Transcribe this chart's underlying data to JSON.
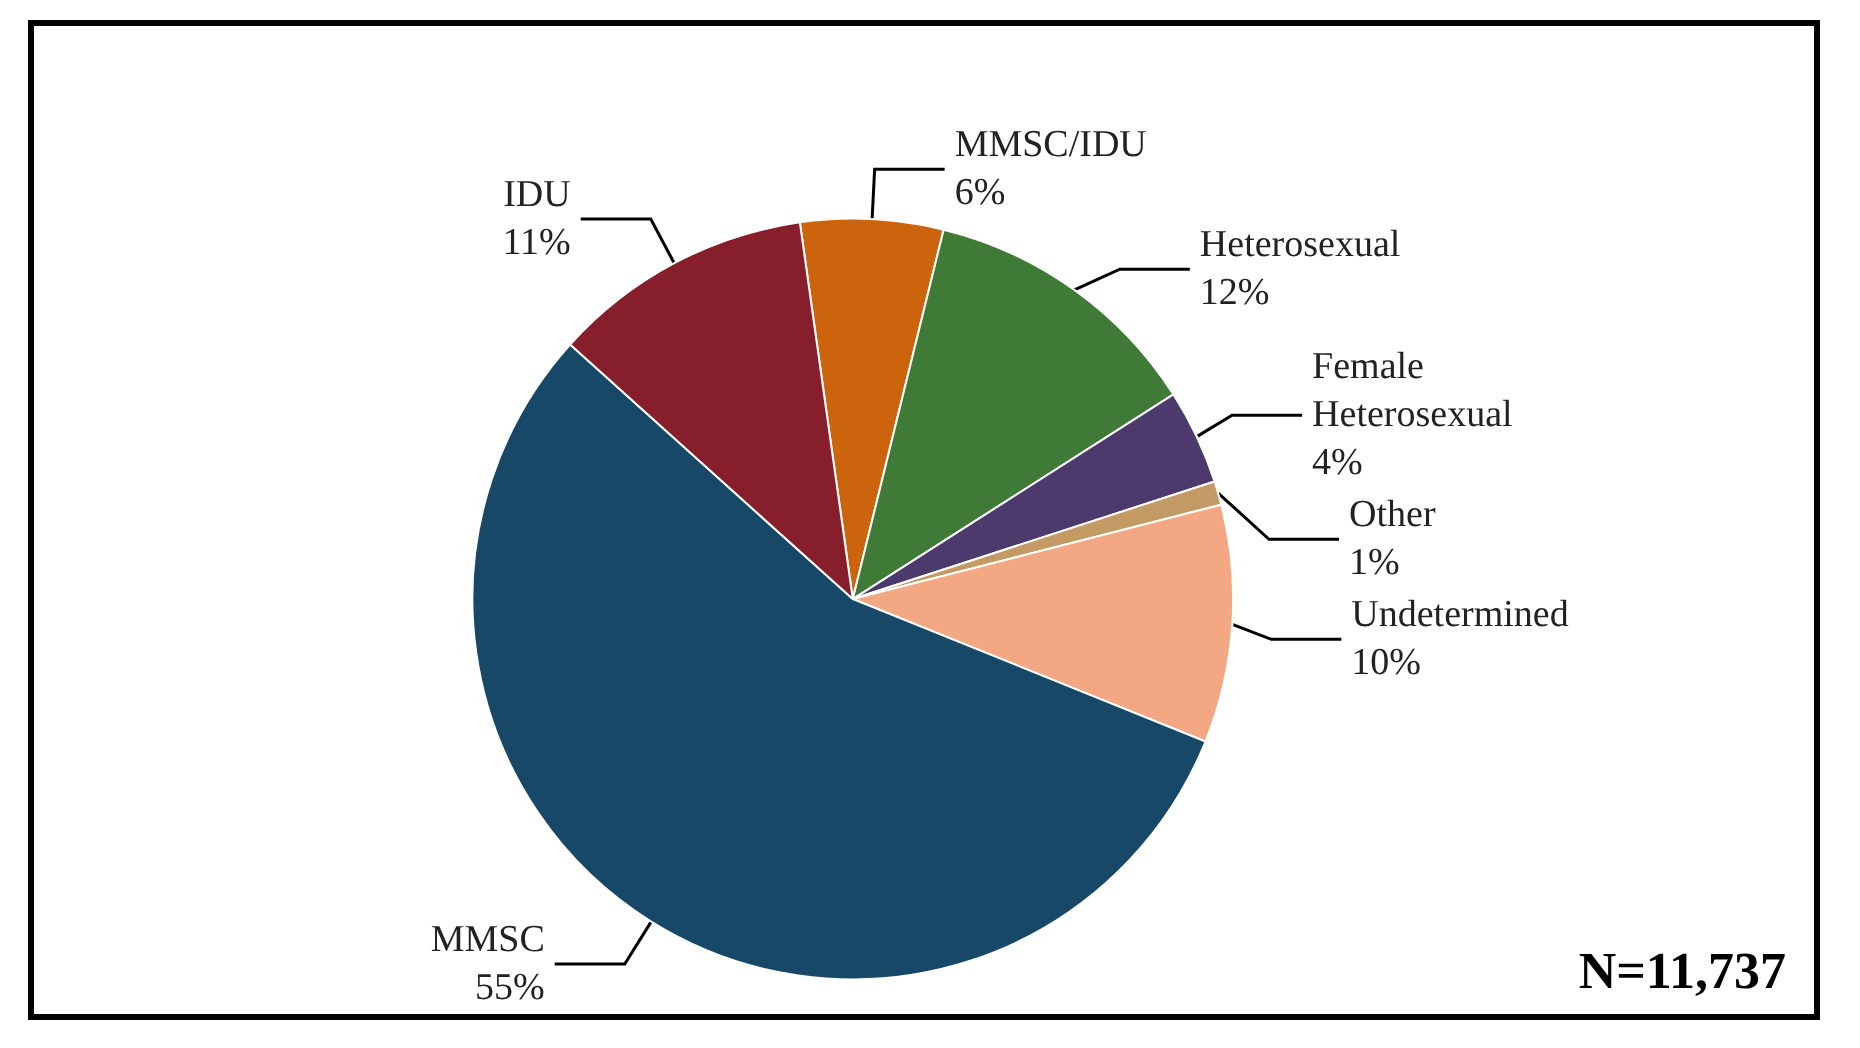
{
  "chart_data": {
    "type": "pie",
    "categories": [
      "MMSC/IDU",
      "Heterosexual",
      "Female Heterosexual",
      "Other",
      "Undetermined",
      "MMSC",
      "IDU"
    ],
    "values": [
      6,
      12,
      4,
      1,
      10,
      55,
      11
    ],
    "colors": [
      "#cc640e",
      "#3f7a37",
      "#4d3a6c",
      "#c49a64",
      "#f3a783",
      "#174868",
      "#861e2c"
    ],
    "value_labels": [
      "6%",
      "12%",
      "4%",
      "1%",
      "10%",
      "55%",
      "11%"
    ],
    "annotations": [
      "N=11,737"
    ]
  }
}
